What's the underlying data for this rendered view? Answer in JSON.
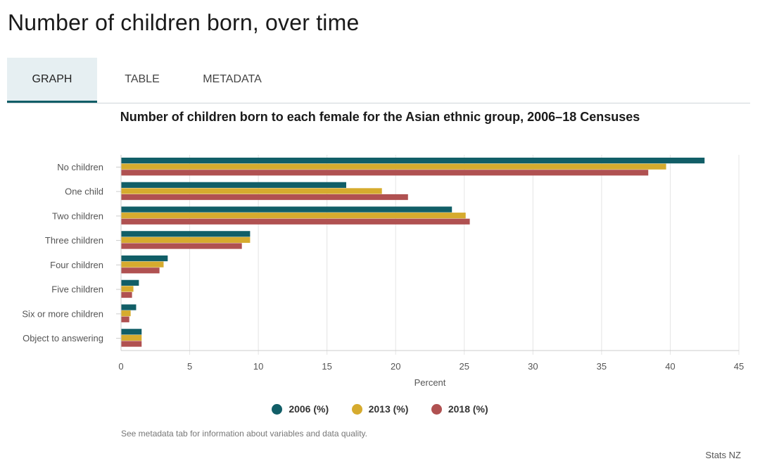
{
  "page": {
    "title": "Number of children born, over time"
  },
  "tabs": [
    {
      "label": "GRAPH",
      "active": true
    },
    {
      "label": "TABLE",
      "active": false
    },
    {
      "label": "METADATA",
      "active": false
    }
  ],
  "footnote": "See metadata tab for information about variables and data quality.",
  "source": "Stats NZ",
  "chart_data": {
    "type": "bar",
    "orientation": "horizontal",
    "title": "Number of children born to each female for the Asian ethnic group, 2006–18 Censuses",
    "xlabel": "Percent",
    "ylabel": "",
    "xlim": [
      0,
      45
    ],
    "xticks": [
      0,
      5,
      10,
      15,
      20,
      25,
      30,
      35,
      40,
      45
    ],
    "grid": true,
    "legend_position": "bottom",
    "categories": [
      "No children",
      "One child",
      "Two children",
      "Three children",
      "Four children",
      "Five children",
      "Six or more children",
      "Object to answering"
    ],
    "series": [
      {
        "name": "2006 (%)",
        "color": "#115e67",
        "values": [
          42.5,
          16.4,
          24.1,
          9.4,
          3.4,
          1.3,
          1.1,
          1.5
        ]
      },
      {
        "name": "2013 (%)",
        "color": "#d6ab2e",
        "values": [
          39.7,
          19.0,
          25.1,
          9.4,
          3.1,
          0.9,
          0.7,
          1.5
        ]
      },
      {
        "name": "2018 (%)",
        "color": "#b05151",
        "values": [
          38.4,
          20.9,
          25.4,
          8.8,
          2.8,
          0.8,
          0.6,
          1.5
        ]
      }
    ]
  }
}
